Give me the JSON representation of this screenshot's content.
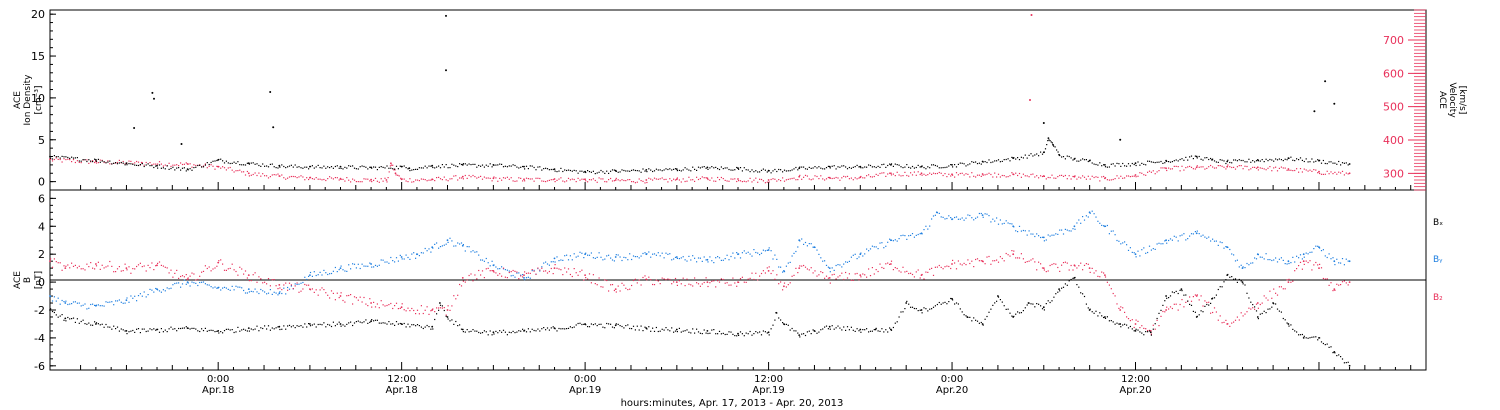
{
  "x_axis": {
    "ticks": [
      {
        "time": "0:00",
        "date": "Apr.18"
      },
      {
        "time": "12:00",
        "date": "Apr.18"
      },
      {
        "time": "0:00",
        "date": "Apr.19"
      },
      {
        "time": "12:00",
        "date": "Apr.19"
      },
      {
        "time": "0:00",
        "date": "Apr.20"
      },
      {
        "time": "12:00",
        "date": "Apr.20"
      }
    ],
    "title": "hours:minutes, Apr. 17, 2013 - Apr. 20, 2013"
  },
  "top_panel": {
    "left_label_lines": [
      "ACE",
      "Ion Density",
      "[cm⁻³]"
    ],
    "right_label_lines": [
      "ACE",
      "Velocity",
      "[km/s]"
    ]
  },
  "bottom_panel": {
    "left_label_lines": [
      "ACE",
      "B",
      "[nT]"
    ],
    "legend": [
      {
        "label": "Bₓ",
        "color": "#000000"
      },
      {
        "label": "Bᵧ",
        "color": "#1f7fe0"
      },
      {
        "label": "B₂",
        "color": "#e8305a"
      }
    ]
  },
  "colors": {
    "density": "#000000",
    "velocity": "#e8305a",
    "bx": "#000000",
    "by": "#1f7fe0",
    "bz": "#e8305a"
  },
  "chart_data": [
    {
      "type": "scatter",
      "title": "",
      "xlabel": "hours:minutes, Apr. 17, 2013 - Apr. 20, 2013",
      "x_unit": "hours since 2013-04-17 00:00",
      "xlim": [
        13.0,
        103.0
      ],
      "ylabel": "ACE Ion Density [cm^-3]",
      "ylim": [
        -1,
        20.5
      ],
      "y_ticks": [
        0,
        5,
        10,
        15,
        20
      ],
      "y2label": "ACE Velocity [km/s]",
      "y2lim": [
        250,
        790
      ],
      "y2_ticks": [
        300,
        400,
        500,
        600,
        700
      ],
      "series": [
        {
          "name": "Ion Density",
          "axis": "left",
          "color": "#000000",
          "x": [
            13,
            16,
            18,
            20,
            22,
            24,
            26,
            28,
            30,
            32,
            34,
            36,
            36.5,
            38,
            40,
            42,
            44,
            46,
            48,
            50,
            52,
            54,
            56,
            58,
            60,
            62,
            64,
            66,
            68,
            70,
            72,
            74,
            76,
            78,
            78.3,
            78.6,
            79,
            80,
            81,
            82,
            84,
            86,
            88,
            89,
            90,
            92,
            94,
            96,
            98
          ],
          "y": [
            3.0,
            2.6,
            2.2,
            1.9,
            1.5,
            2.6,
            2.2,
            1.9,
            1.8,
            1.8,
            1.7,
            1.8,
            1.6,
            1.9,
            2.0,
            2.0,
            1.8,
            1.5,
            1.2,
            1.3,
            1.4,
            1.5,
            1.7,
            1.6,
            1.3,
            1.6,
            1.8,
            1.8,
            2.0,
            1.8,
            2.0,
            2.4,
            2.8,
            3.5,
            5.2,
            4.4,
            3.2,
            2.7,
            2.5,
            2.0,
            2.2,
            2.5,
            3.0,
            2.6,
            2.4,
            2.6,
            2.8,
            2.5,
            2.1
          ]
        },
        {
          "name": "Ion Density (isolated)",
          "axis": "left",
          "color": "#000000",
          "x": [
            19.7,
            19.8,
            18.5,
            21.6,
            27.4,
            27.6,
            38.9,
            38.9,
            95.7,
            96.4,
            97.0,
            83.0,
            78.0
          ],
          "y": [
            10.6,
            9.9,
            6.4,
            4.5,
            10.7,
            6.5,
            19.8,
            13.3,
            8.4,
            12.0,
            9.3,
            5.0,
            7.0
          ]
        },
        {
          "name": "Velocity",
          "axis": "right",
          "color": "#e8305a",
          "x": [
            13,
            16,
            19,
            22,
            24,
            26,
            28,
            30,
            32,
            34,
            35,
            35.3,
            35.6,
            36,
            38,
            40,
            42,
            44,
            46,
            48,
            50,
            52,
            54,
            56,
            58,
            60,
            62,
            64,
            66,
            68,
            70,
            72,
            74,
            76,
            78,
            80,
            82,
            84,
            86,
            88,
            90,
            92,
            94,
            96,
            98
          ],
          "y": [
            342,
            336,
            332,
            328,
            320,
            300,
            292,
            287,
            284,
            281,
            280,
            330,
            300,
            282,
            282,
            290,
            285,
            282,
            283,
            282,
            280,
            280,
            282,
            285,
            283,
            280,
            290,
            287,
            288,
            300,
            300,
            297,
            298,
            297,
            292,
            290,
            285,
            295,
            315,
            318,
            320,
            318,
            313,
            305,
            300
          ]
        },
        {
          "name": "Velocity (isolated)",
          "axis": "right",
          "color": "#e8305a",
          "x": [
            77.2,
            77.1
          ],
          "y": [
            775,
            520
          ]
        }
      ]
    },
    {
      "type": "scatter",
      "title": "",
      "xlabel": "hours:minutes, Apr. 17, 2013 - Apr. 20, 2013",
      "x_unit": "hours since 2013-04-17 00:00",
      "xlim": [
        13.0,
        103.0
      ],
      "ylabel": "ACE B [nT]",
      "ylim": [
        -6.3,
        6.6
      ],
      "y_ticks": [
        -6,
        -4,
        -2,
        0,
        2,
        4,
        6
      ],
      "zero_line": true,
      "series": [
        {
          "name": "Bₓ",
          "color": "#000000",
          "x": [
            13,
            14,
            16,
            18,
            20,
            22,
            24,
            26,
            28,
            30,
            32,
            34,
            36,
            38,
            38.5,
            39,
            40,
            42,
            44,
            46,
            48,
            50,
            52,
            54,
            56,
            58,
            60,
            60.5,
            61,
            62,
            63,
            64,
            66,
            67,
            68,
            69,
            70,
            72,
            73,
            74,
            75,
            76,
            77,
            78,
            79,
            80,
            81,
            82,
            83,
            84,
            85,
            86,
            87,
            88,
            89,
            90,
            91,
            92,
            93,
            94,
            95,
            96,
            97,
            98
          ],
          "y": [
            -2.0,
            -2.6,
            -3.0,
            -3.5,
            -3.4,
            -3.3,
            -3.5,
            -3.3,
            -3.2,
            -3.0,
            -3.0,
            -2.8,
            -3.0,
            -3.2,
            -1.5,
            -2.5,
            -3.4,
            -3.6,
            -3.5,
            -3.3,
            -3.0,
            -3.1,
            -3.3,
            -3.4,
            -3.5,
            -3.7,
            -3.6,
            -2.2,
            -3.0,
            -3.8,
            -3.5,
            -3.2,
            -3.4,
            -3.4,
            -3.4,
            -1.5,
            -2.0,
            -1.2,
            -2.5,
            -3.0,
            -1.0,
            -2.5,
            -1.5,
            -1.8,
            -0.5,
            0.3,
            -2.0,
            -2.5,
            -3.0,
            -3.5,
            -3.6,
            -1.0,
            -0.5,
            -2.5,
            -1.2,
            0.5,
            0.0,
            -2.5,
            -1.5,
            -3.0,
            -4.0,
            -4.0,
            -5.0,
            -6.0
          ]
        },
        {
          "name": "Bᵧ",
          "color": "#1f7fe0",
          "x": [
            13,
            14,
            16,
            18,
            20,
            22,
            24,
            26,
            28,
            30,
            32,
            34,
            36,
            37,
            38,
            39,
            40,
            42,
            44,
            46,
            48,
            50,
            52,
            54,
            56,
            58,
            60,
            61,
            62,
            63,
            64,
            66,
            68,
            70,
            71,
            72,
            74,
            76,
            78,
            80,
            81,
            82,
            84,
            86,
            88,
            90,
            91,
            92,
            94,
            95,
            96,
            97,
            98
          ],
          "y": [
            -1.0,
            -1.5,
            -1.7,
            -1.3,
            -0.5,
            0.0,
            -0.4,
            -0.5,
            -0.8,
            0.5,
            1.0,
            1.3,
            1.8,
            2.0,
            2.5,
            3.0,
            2.6,
            1.2,
            0.3,
            1.7,
            2.0,
            1.8,
            2.0,
            1.8,
            1.6,
            2.0,
            2.3,
            0.8,
            3.0,
            2.5,
            1.0,
            2.0,
            3.0,
            3.5,
            5.0,
            4.5,
            4.8,
            4.0,
            3.2,
            4.0,
            5.0,
            4.0,
            2.0,
            3.0,
            3.5,
            2.5,
            1.0,
            2.0,
            1.5,
            2.0,
            2.5,
            1.5,
            1.5
          ]
        },
        {
          "name": "B₂",
          "color": "#e8305a",
          "x": [
            13,
            14,
            16,
            18,
            20,
            22,
            24,
            26,
            28,
            30,
            32,
            34,
            36,
            38,
            39,
            40,
            42,
            44,
            46,
            48,
            50,
            52,
            54,
            56,
            58,
            60,
            61,
            62,
            64,
            66,
            68,
            70,
            72,
            74,
            76,
            78,
            80,
            81,
            82,
            83,
            84,
            85,
            86,
            88,
            90,
            92,
            94,
            95,
            96,
            97,
            98
          ],
          "y": [
            1.5,
            1.0,
            1.3,
            1.0,
            1.2,
            0.2,
            1.4,
            0.5,
            -0.2,
            -0.5,
            -1.0,
            -1.5,
            -1.8,
            -2.0,
            -2.0,
            0.3,
            0.8,
            0.5,
            1.0,
            0.5,
            -0.5,
            0.2,
            0.0,
            0.0,
            0.0,
            0.8,
            -0.3,
            1.0,
            0.3,
            0.5,
            1.3,
            0.5,
            1.3,
            1.5,
            2.0,
            1.0,
            1.2,
            1.0,
            0.5,
            -2.0,
            -3.0,
            -3.5,
            -2.0,
            -1.0,
            -3.0,
            -1.5,
            0.0,
            1.5,
            1.0,
            -0.5,
            0.0
          ]
        }
      ]
    }
  ]
}
